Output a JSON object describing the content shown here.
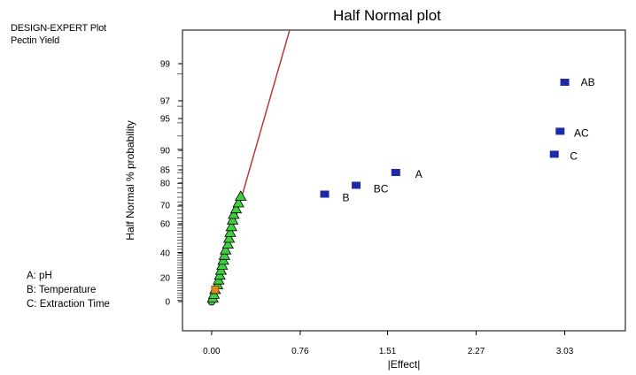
{
  "header": {
    "software": "DESIGN-EXPERT Plot",
    "response": "Pectin Yield"
  },
  "factor_legend": [
    "A: pH",
    "B: Temperature",
    "C: Extraction Time"
  ],
  "colors": {
    "axis": "#000000",
    "fit_line": "#b33a3a",
    "significant_effect": "#1c2aa8",
    "error_effect": "#3fcf3f",
    "intermediate_effect": "#e08a1e"
  },
  "chart_data": {
    "type": "scatter",
    "title": "Half Normal plot",
    "xlabel": "|Effect|",
    "ylabel": "Half Normal % probability",
    "xlim": [
      -0.25,
      3.55
    ],
    "x_ticks": [
      0.0,
      0.76,
      1.51,
      2.27,
      3.03
    ],
    "x_tick_labels": [
      "0.00",
      "0.76",
      "1.51",
      "2.27",
      "3.03"
    ],
    "y_scale": "half-normal probability",
    "y_ticks": [
      0,
      20,
      40,
      60,
      70,
      80,
      85,
      90,
      95,
      97,
      99
    ],
    "y_tick_labels": [
      "0",
      "20",
      "40",
      "60",
      "70",
      "80",
      "85",
      "90",
      "95",
      "97",
      "99"
    ],
    "grid": false,
    "fit_line": {
      "x": [
        0.0,
        0.7
      ],
      "y": [
        0,
        99.92
      ]
    },
    "labeled_effects": [
      {
        "label": "A",
        "x": 1.58,
        "y": 84
      },
      {
        "label": "B",
        "x": 0.97,
        "y": 75
      },
      {
        "label": "C",
        "x": 2.94,
        "y": 89
      },
      {
        "label": "AB",
        "x": 3.03,
        "y": 98
      },
      {
        "label": "AC",
        "x": 2.99,
        "y": 93
      },
      {
        "label": "BC",
        "x": 1.24,
        "y": 79
      }
    ],
    "error_effects": [
      {
        "x": 0.0,
        "y": 0
      },
      {
        "x": 0.01,
        "y": 3
      },
      {
        "x": 0.02,
        "y": 6
      },
      {
        "x": 0.03,
        "y": 10
      },
      {
        "x": 0.05,
        "y": 14
      },
      {
        "x": 0.06,
        "y": 18
      },
      {
        "x": 0.07,
        "y": 22
      },
      {
        "x": 0.08,
        "y": 26
      },
      {
        "x": 0.09,
        "y": 30
      },
      {
        "x": 0.1,
        "y": 34
      },
      {
        "x": 0.11,
        "y": 38
      },
      {
        "x": 0.12,
        "y": 42
      },
      {
        "x": 0.14,
        "y": 46
      },
      {
        "x": 0.15,
        "y": 50
      },
      {
        "x": 0.16,
        "y": 54
      },
      {
        "x": 0.17,
        "y": 58
      },
      {
        "x": 0.18,
        "y": 62
      },
      {
        "x": 0.19,
        "y": 65
      },
      {
        "x": 0.21,
        "y": 68
      },
      {
        "x": 0.23,
        "y": 71
      },
      {
        "x": 0.25,
        "y": 74
      }
    ],
    "intermediate_effects": [
      {
        "x": 0.03,
        "y": 10
      }
    ],
    "rug_marks": 48
  }
}
